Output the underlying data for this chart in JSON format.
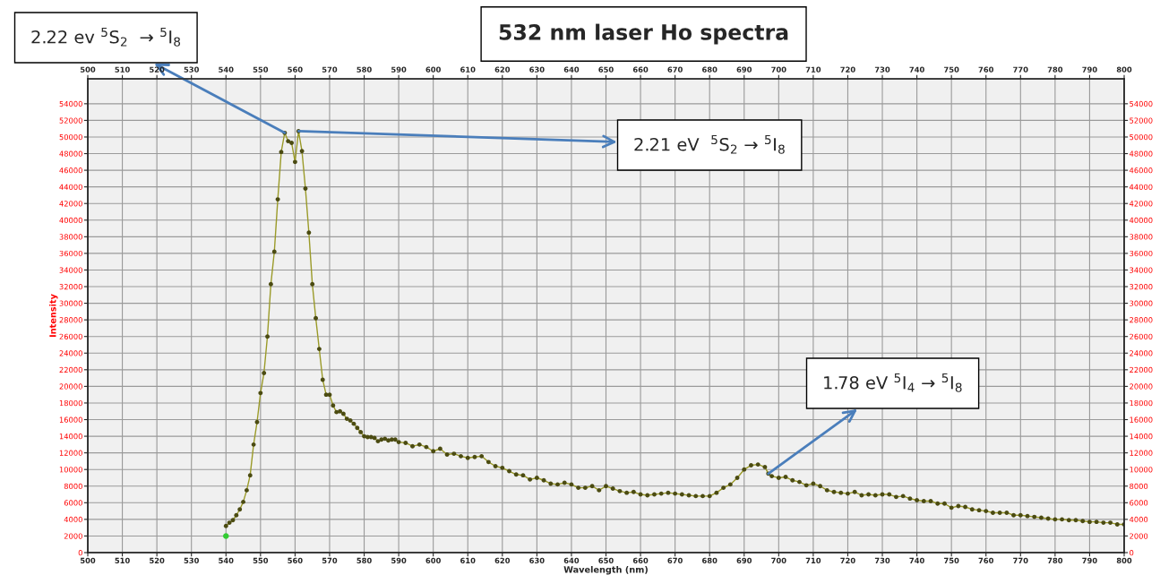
{
  "chart_data": {
    "type": "line",
    "title": "532 nm laser Ho spectra",
    "xlabel": "Wavelength (nm)",
    "ylabel": "Intensity",
    "xlim": [
      500,
      800
    ],
    "xticks": [
      500,
      510,
      520,
      530,
      540,
      550,
      560,
      570,
      580,
      590,
      600,
      610,
      620,
      630,
      640,
      650,
      660,
      670,
      680,
      690,
      700,
      710,
      720,
      730,
      740,
      750,
      760,
      770,
      780,
      790,
      800
    ],
    "x2lim": [
      500,
      800
    ],
    "x2ticks": [
      500,
      510,
      520,
      530,
      540,
      550,
      560,
      570,
      580,
      590,
      600,
      610,
      620,
      630,
      640,
      650,
      660,
      670,
      680,
      690,
      700,
      710,
      720,
      730,
      740,
      750,
      760,
      770,
      780,
      790,
      800
    ],
    "ylim": [
      0,
      57000
    ],
    "yticks": [
      0,
      2000,
      4000,
      6000,
      8000,
      10000,
      12000,
      14000,
      16000,
      18000,
      20000,
      22000,
      24000,
      26000,
      28000,
      30000,
      32000,
      34000,
      36000,
      38000,
      40000,
      42000,
      44000,
      46000,
      48000,
      50000,
      52000,
      54000
    ],
    "y2lim": [
      0,
      57000
    ],
    "y2ticks": [
      0,
      2000,
      4000,
      6000,
      8000,
      10000,
      12000,
      14000,
      16000,
      18000,
      20000,
      22000,
      24000,
      26000,
      28000,
      30000,
      32000,
      34000,
      36000,
      38000,
      40000,
      42000,
      44000,
      46000,
      48000,
      50000,
      52000,
      54000
    ],
    "grid": true,
    "marker": "circle",
    "line_style": "solid",
    "series": [
      {
        "color": "#9a9a28",
        "type": "line",
        "x": [
          540,
          541,
          542,
          543,
          544,
          545,
          546,
          547,
          548,
          549,
          550,
          551,
          552,
          553,
          554,
          555,
          556,
          557,
          558,
          559,
          560,
          561,
          562,
          563,
          564,
          565,
          566,
          567,
          568,
          569,
          570,
          571,
          572,
          573,
          574,
          575,
          576,
          577,
          578,
          579,
          580,
          581,
          582,
          583,
          584,
          585,
          586,
          587,
          588,
          589,
          590,
          592,
          594,
          596,
          598,
          600,
          602,
          604,
          606,
          608,
          610,
          612,
          614,
          616,
          618,
          620,
          622,
          624,
          626,
          628,
          630,
          632,
          634,
          636,
          638,
          640,
          642,
          644,
          646,
          648,
          650,
          652,
          654,
          656,
          658,
          660,
          662,
          664,
          666,
          668,
          670,
          672,
          674,
          676,
          678,
          680,
          682,
          684,
          686,
          688,
          690,
          692,
          694,
          696,
          697,
          698,
          700,
          702,
          704,
          706,
          708,
          710,
          712,
          714,
          716,
          718,
          720,
          722,
          724,
          726,
          728,
          730,
          732,
          734,
          736,
          738,
          740,
          742,
          744,
          746,
          748,
          750,
          752,
          754,
          756,
          758,
          760,
          762,
          764,
          766,
          768,
          770,
          772,
          774,
          776,
          778,
          780,
          782,
          784,
          786,
          788,
          790,
          792,
          794,
          796,
          798,
          800
        ],
        "values": [
          3200,
          3600,
          3900,
          4500,
          5200,
          6100,
          7500,
          9300,
          13000,
          15700,
          19200,
          21600,
          26000,
          32300,
          36200,
          42500,
          48200,
          50500,
          49500,
          49300,
          47000,
          50700,
          48300,
          43800,
          38500,
          32300,
          28200,
          24500,
          20800,
          19000,
          19000,
          17700,
          16900,
          17000,
          16700,
          16100,
          15900,
          15500,
          15000,
          14500,
          14000,
          13900,
          13900,
          13800,
          13400,
          13600,
          13700,
          13500,
          13600,
          13600,
          13300,
          13200,
          12800,
          13000,
          12700,
          12200,
          12500,
          11800,
          11900,
          11600,
          11400,
          11500,
          11600,
          10900,
          10400,
          10200,
          9800,
          9400,
          9300,
          8800,
          9000,
          8700,
          8300,
          8200,
          8400,
          8200,
          7800,
          7800,
          8000,
          7500,
          8000,
          7700,
          7400,
          7200,
          7300,
          7000,
          6900,
          7000,
          7100,
          7200,
          7100,
          7000,
          6900,
          6800,
          6800,
          6800,
          7200,
          7800,
          8200,
          9000,
          10000,
          10500,
          10600,
          10300,
          9500,
          9200,
          9000,
          9100,
          8700,
          8500,
          8100,
          8300,
          8000,
          7500,
          7300,
          7200,
          7100,
          7300,
          6900,
          7000,
          6900,
          7000,
          7000,
          6700,
          6800,
          6500,
          6300,
          6200,
          6200,
          5900,
          5900,
          5400,
          5600,
          5500,
          5200,
          5100,
          5000,
          4800,
          4800,
          4800,
          4500,
          4500,
          4400,
          4300,
          4200,
          4100,
          4000,
          4000,
          3900,
          3900,
          3800,
          3700,
          3700,
          3600,
          3600,
          3400,
          3400
        ]
      },
      {
        "color": "#33cc33",
        "type": "scatter",
        "x": [
          540
        ],
        "values": [
          2000
        ]
      }
    ],
    "annotations": [
      {
        "text": "2.22 ev $^{5}$S$_{2}$  → $^{5}$I$_{8}$",
        "x": 557,
        "y": 50500
      },
      {
        "text": "2.21 eV  $^{5}$S$_{2}$ → $^{5}$I$_{8}$",
        "x": 561,
        "y": 50700
      },
      {
        "text": "1.78 eV $^{5}$I$_{4}$ → $^{5}$I$_{8}$",
        "x": 697,
        "y": 9500
      }
    ]
  }
}
